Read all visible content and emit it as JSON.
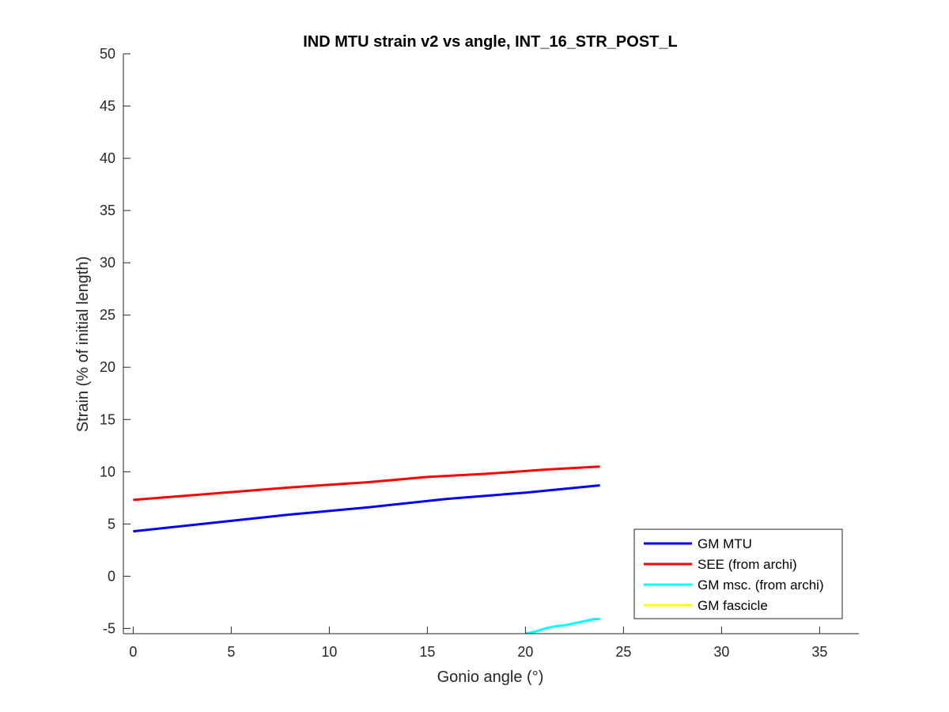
{
  "chart_data": {
    "type": "line",
    "title": "IND MTU strain v2 vs angle, INT_16_STR_POST_L",
    "xlabel": "Gonio angle (°)",
    "ylabel": "Strain (% of initial length)",
    "xlim": [
      -0.5,
      37
    ],
    "ylim": [
      -5.5,
      50
    ],
    "xticks": [
      0,
      5,
      10,
      15,
      20,
      25,
      30,
      35
    ],
    "xtick_labels": [
      "0",
      "5",
      "10",
      "15",
      "20",
      "25",
      "30",
      "35"
    ],
    "yticks": [
      -5,
      0,
      5,
      10,
      15,
      20,
      25,
      30,
      35,
      40,
      45,
      50
    ],
    "ytick_labels": [
      "-5",
      "0",
      "5",
      "10",
      "15",
      "20",
      "25",
      "30",
      "35",
      "40",
      "45",
      "50"
    ],
    "grid": false,
    "legend_position": "bottom-right",
    "series": [
      {
        "name": "GM MTU",
        "color": "#0000ff",
        "x": [
          0,
          4,
          8,
          12,
          16,
          20,
          23.8
        ],
        "y": [
          4.3,
          5.1,
          5.9,
          6.6,
          7.4,
          8.0,
          8.7
        ]
      },
      {
        "name": "SEE (from archi)",
        "color": "#ff0000",
        "x": [
          0,
          4,
          8,
          12,
          15,
          18,
          21,
          23.8
        ],
        "y": [
          7.3,
          7.9,
          8.5,
          9.0,
          9.5,
          9.8,
          10.2,
          10.5
        ]
      },
      {
        "name": "GM msc. (from archi)",
        "color": "#00ffff",
        "x": [
          20.0,
          20.5,
          21.0,
          21.5,
          22.0,
          22.5,
          23.0,
          23.5,
          23.8
        ],
        "y": [
          -5.5,
          -5.3,
          -5.0,
          -4.8,
          -4.7,
          -4.5,
          -4.3,
          -4.1,
          -4.1
        ]
      },
      {
        "name": "GM fascicle",
        "color": "#ffff00",
        "x": [],
        "y": []
      }
    ]
  }
}
